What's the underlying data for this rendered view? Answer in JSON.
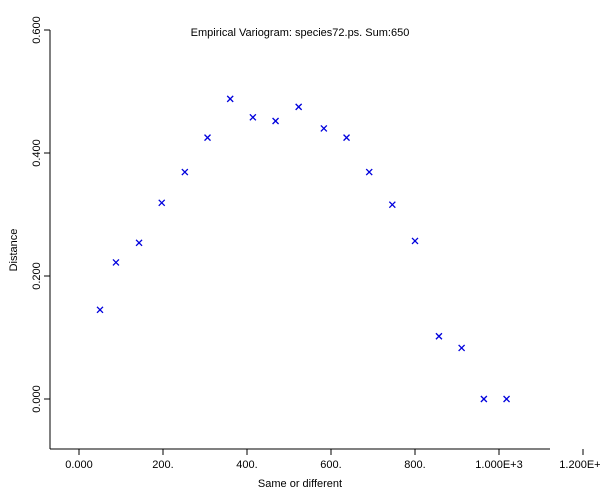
{
  "chart_data": {
    "type": "scatter",
    "title": "Empirical Variogram: species72.ps. Sum:650",
    "xlabel": "Same or different",
    "ylabel": "Distance",
    "xlim": [
      -70,
      1340
    ],
    "ylim": [
      -0.08,
      0.6
    ],
    "x_tick_labels": [
      "0.000",
      "200.",
      "400.",
      "600.",
      "800.",
      "1.000E+3",
      "1.200E+3"
    ],
    "x_tick_values": [
      0,
      200,
      400,
      600,
      800,
      1000,
      1200
    ],
    "y_tick_labels": [
      "0.000",
      "0.200",
      "0.400",
      "0.600"
    ],
    "y_tick_values": [
      0,
      0.2,
      0.4,
      0.6
    ],
    "marker": "x",
    "marker_color": "#0000dd",
    "grid": false,
    "points": [
      {
        "x": 50,
        "y": 0.145
      },
      {
        "x": 88,
        "y": 0.222
      },
      {
        "x": 143,
        "y": 0.254
      },
      {
        "x": 197,
        "y": 0.319
      },
      {
        "x": 252,
        "y": 0.369
      },
      {
        "x": 306,
        "y": 0.425
      },
      {
        "x": 360,
        "y": 0.488
      },
      {
        "x": 414,
        "y": 0.458
      },
      {
        "x": 468,
        "y": 0.452
      },
      {
        "x": 523,
        "y": 0.475
      },
      {
        "x": 583,
        "y": 0.44
      },
      {
        "x": 637,
        "y": 0.425
      },
      {
        "x": 691,
        "y": 0.369
      },
      {
        "x": 746,
        "y": 0.316
      },
      {
        "x": 800,
        "y": 0.257
      },
      {
        "x": 857,
        "y": 0.102
      },
      {
        "x": 911,
        "y": 0.083
      },
      {
        "x": 964,
        "y": 0.0
      },
      {
        "x": 1018,
        "y": 0.0
      }
    ]
  }
}
